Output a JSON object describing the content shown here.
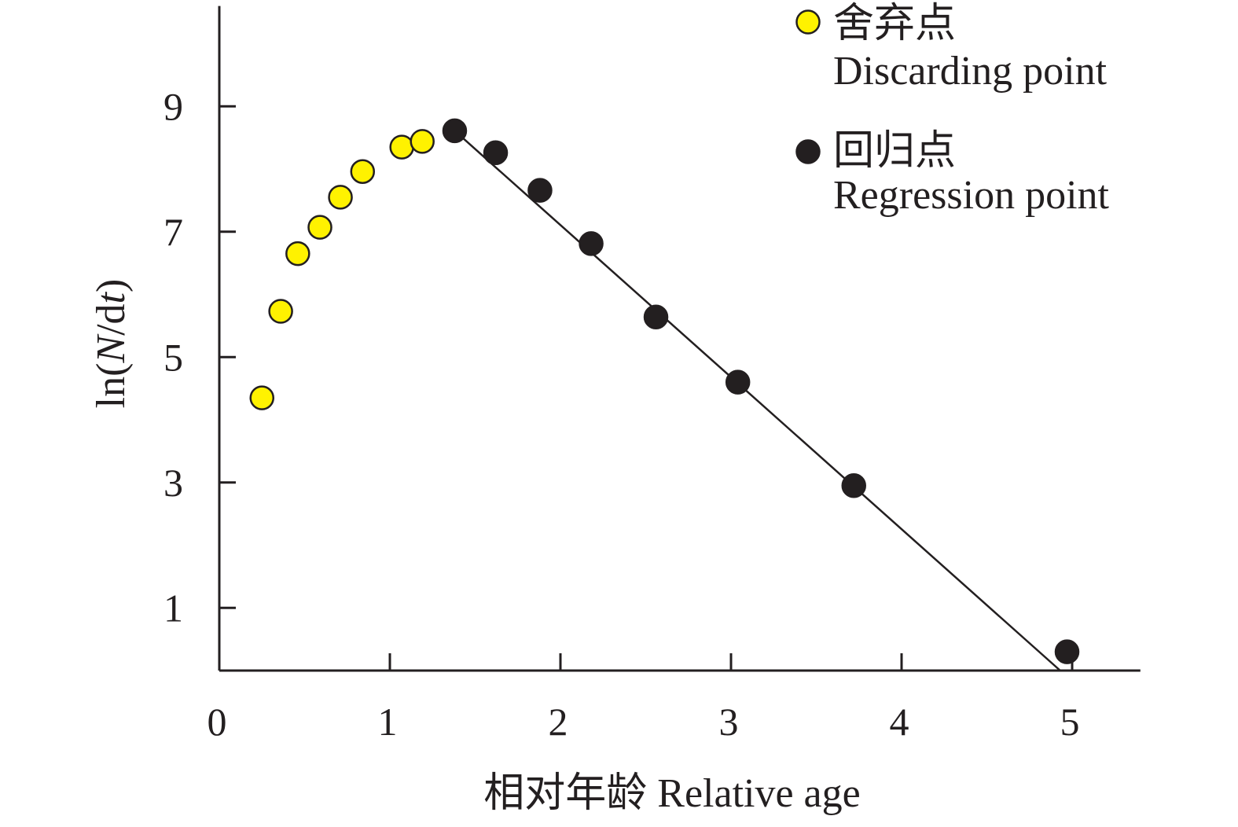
{
  "chart_data": {
    "type": "scatter",
    "xlabel": "相对年龄 Relative age",
    "ylabel": [
      "ln(",
      "N",
      "/d",
      "t",
      ")"
    ],
    "xlim": [
      0,
      5.4
    ],
    "ylim": [
      0,
      10.6
    ],
    "x_ticks": [
      0,
      1,
      2,
      3,
      4,
      5
    ],
    "y_ticks": [
      1,
      3,
      5,
      7,
      9
    ],
    "grid": false,
    "legend_position": "top-right",
    "series": [
      {
        "name": "舍弃点",
        "name_en": "Discarding point",
        "color": "#FFF200",
        "x": [
          0.25,
          0.36,
          0.46,
          0.59,
          0.71,
          0.84,
          1.07,
          1.19
        ],
        "y": [
          4.35,
          5.73,
          6.65,
          7.07,
          7.55,
          7.96,
          8.35,
          8.44
        ]
      },
      {
        "name": "回归点",
        "name_en": "Regression point",
        "color": "#231F20",
        "x": [
          1.38,
          1.62,
          1.88,
          2.18,
          2.56,
          3.04,
          3.72,
          4.97
        ],
        "y": [
          8.61,
          8.26,
          7.66,
          6.81,
          5.64,
          4.6,
          2.95,
          0.3
        ]
      }
    ],
    "regression_line": {
      "color": "#231F20",
      "x": [
        1.38,
        4.93
      ],
      "y": [
        8.61,
        0
      ]
    }
  }
}
